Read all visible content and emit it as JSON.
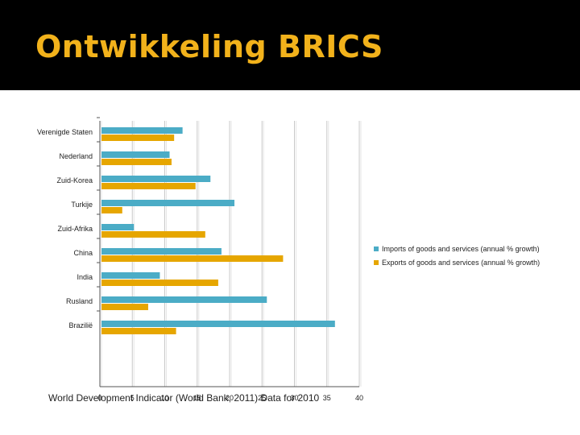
{
  "slide": {
    "title": "Ontwikkeling BRICS",
    "caption": "World Development Indicator (World Bank, 2011) Data for 2010"
  },
  "colors": {
    "header_background": "#000000",
    "title": "#f2b21b",
    "imports": "#4bacc6",
    "exports": "#e6a600"
  },
  "chart_data": {
    "type": "bar",
    "orientation": "horizontal",
    "categories": [
      "Verenigde Staten",
      "Nederland",
      "Zuid-Korea",
      "Turkije",
      "Zuid-Afrika",
      "China",
      "India",
      "Rusland",
      "Brazilië"
    ],
    "series": [
      {
        "name": "Imports of goods and services (annual % growth)",
        "color": "#4bacc6",
        "values": [
          12.5,
          10.5,
          16.8,
          20.5,
          5.0,
          18.5,
          9.0,
          25.5,
          36.0
        ]
      },
      {
        "name": "Exports of goods and services (annual % growth)",
        "color": "#e6a600",
        "values": [
          11.2,
          10.8,
          14.5,
          3.2,
          16.0,
          28.0,
          18.0,
          7.2,
          11.5
        ]
      }
    ],
    "xlim": [
      0,
      40
    ],
    "xticks": [
      0,
      5,
      10,
      15,
      20,
      25,
      30,
      35,
      40
    ],
    "grid": true,
    "legend": "right"
  }
}
